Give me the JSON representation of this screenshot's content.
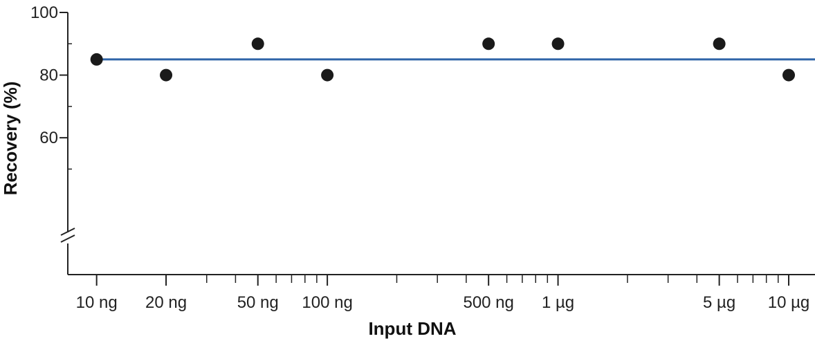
{
  "chart_data": {
    "type": "scatter",
    "title": "",
    "xlabel": "Input DNA",
    "ylabel": "Recovery (%)",
    "x_scale": "log",
    "x_unit": "ng",
    "xlim": [
      7.5,
      13000
    ],
    "ylim": [
      30,
      100
    ],
    "axis_break": "y",
    "y_ticks": [
      {
        "value": 100,
        "label": "100"
      },
      {
        "value": 80,
        "label": "80"
      },
      {
        "value": 60,
        "label": "60"
      }
    ],
    "y_minor_ticks": [
      90,
      70,
      50
    ],
    "x_ticks": [
      {
        "value": 10,
        "label": "10 ng"
      },
      {
        "value": 20,
        "label": "20 ng"
      },
      {
        "value": 50,
        "label": "50 ng"
      },
      {
        "value": 100,
        "label": "100 ng"
      },
      {
        "value": 500,
        "label": "500 ng"
      },
      {
        "value": 1000,
        "label": "1 µg"
      },
      {
        "value": 5000,
        "label": "5 µg"
      },
      {
        "value": 10000,
        "label": "10 µg"
      }
    ],
    "x_minor_ticks": [
      20,
      30,
      40,
      50,
      60,
      70,
      80,
      90,
      200,
      300,
      400,
      500,
      600,
      700,
      800,
      900,
      2000,
      3000,
      4000,
      5000,
      6000,
      7000,
      8000,
      9000
    ],
    "series": [
      {
        "points": [
          {
            "x": 10,
            "y": 85
          },
          {
            "x": 20,
            "y": 80
          },
          {
            "x": 50,
            "y": 90
          },
          {
            "x": 100,
            "y": 80
          },
          {
            "x": 500,
            "y": 90
          },
          {
            "x": 1000,
            "y": 90
          },
          {
            "x": 5000,
            "y": 90
          },
          {
            "x": 10000,
            "y": 80
          }
        ],
        "color": "#1a1a1a"
      }
    ],
    "reference_line": {
      "y": 85,
      "color": "#2f64a8"
    },
    "grid": false
  }
}
